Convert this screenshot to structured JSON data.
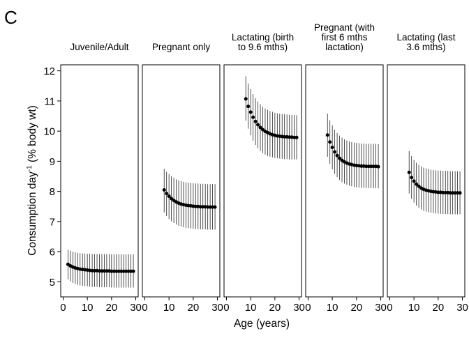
{
  "panel_letter": "C",
  "chart_data": {
    "type": "scatter",
    "error_bars": true,
    "xlabel": "Age (years)",
    "ylabel_main": "Consumption day",
    "ylabel_sup": "-1",
    "ylabel_tail": " (% body wt)",
    "xlim": [
      -1,
      31
    ],
    "ylim": [
      4.5,
      12.2
    ],
    "xticks": [
      0,
      10,
      20,
      30
    ],
    "xtick_labels": [
      "0",
      "10",
      "20",
      "30"
    ],
    "yticks": [
      5,
      6,
      7,
      8,
      9,
      10,
      11,
      12
    ],
    "ytick_labels": [
      "5",
      "6",
      "7",
      "8",
      "9",
      "10",
      "11",
      "12"
    ],
    "grid": false,
    "legend": "none",
    "panels": [
      {
        "title_lines": [
          "Juvenile/Adult"
        ],
        "x": [
          2,
          3,
          4,
          5,
          6,
          7,
          8,
          9,
          10,
          11,
          12,
          13,
          14,
          15,
          16,
          17,
          18,
          19,
          20,
          21,
          22,
          23,
          24,
          25,
          26,
          27,
          28,
          29
        ],
        "y": [
          5.58,
          5.53,
          5.49,
          5.46,
          5.44,
          5.42,
          5.41,
          5.4,
          5.39,
          5.38,
          5.37,
          5.37,
          5.37,
          5.36,
          5.36,
          5.36,
          5.36,
          5.36,
          5.35,
          5.35,
          5.35,
          5.35,
          5.35,
          5.35,
          5.35,
          5.35,
          5.35,
          5.35
        ],
        "lower": [
          5.08,
          5.01,
          4.96,
          4.93,
          4.9,
          4.88,
          4.87,
          4.86,
          4.85,
          4.84,
          4.83,
          4.83,
          4.83,
          4.82,
          4.82,
          4.82,
          4.82,
          4.82,
          4.81,
          4.81,
          4.81,
          4.81,
          4.81,
          4.81,
          4.81,
          4.81,
          4.81,
          4.81
        ],
        "upper": [
          6.06,
          6.03,
          6.0,
          5.98,
          5.96,
          5.95,
          5.94,
          5.94,
          5.93,
          5.93,
          5.92,
          5.92,
          5.92,
          5.92,
          5.92,
          5.92,
          5.92,
          5.92,
          5.91,
          5.91,
          5.91,
          5.91,
          5.91,
          5.91,
          5.91,
          5.91,
          5.91,
          5.91
        ]
      },
      {
        "title_lines": [
          "Pregnant only"
        ],
        "x": [
          8,
          9,
          10,
          11,
          12,
          13,
          14,
          15,
          16,
          17,
          18,
          19,
          20,
          21,
          22,
          23,
          24,
          25,
          26,
          27,
          28,
          29
        ],
        "y": [
          8.05,
          7.93,
          7.84,
          7.76,
          7.7,
          7.65,
          7.61,
          7.58,
          7.56,
          7.54,
          7.53,
          7.52,
          7.51,
          7.5,
          7.5,
          7.49,
          7.49,
          7.49,
          7.48,
          7.48,
          7.48,
          7.48
        ],
        "lower": [
          7.3,
          7.18,
          7.08,
          7.01,
          6.95,
          6.9,
          6.86,
          6.83,
          6.81,
          6.79,
          6.78,
          6.77,
          6.76,
          6.75,
          6.75,
          6.74,
          6.74,
          6.74,
          6.73,
          6.73,
          6.73,
          6.73
        ],
        "upper": [
          8.75,
          8.65,
          8.57,
          8.5,
          8.45,
          8.4,
          8.37,
          8.34,
          8.32,
          8.3,
          8.29,
          8.28,
          8.27,
          8.26,
          8.26,
          8.25,
          8.25,
          8.25,
          8.24,
          8.24,
          8.24,
          8.24
        ]
      },
      {
        "title_lines": [
          "Lactating (birth",
          "to 9.6 mths)"
        ],
        "x": [
          8,
          9,
          10,
          11,
          12,
          13,
          14,
          15,
          16,
          17,
          18,
          19,
          20,
          21,
          22,
          23,
          24,
          25,
          26,
          27,
          28,
          29
        ],
        "y": [
          11.07,
          10.82,
          10.63,
          10.46,
          10.32,
          10.21,
          10.12,
          10.05,
          9.99,
          9.95,
          9.91,
          9.88,
          9.86,
          9.84,
          9.83,
          9.82,
          9.81,
          9.81,
          9.8,
          9.8,
          9.79,
          9.79
        ],
        "lower": [
          10.35,
          10.08,
          9.86,
          9.68,
          9.54,
          9.43,
          9.34,
          9.27,
          9.22,
          9.18,
          9.15,
          9.13,
          9.11,
          9.1,
          9.09,
          9.08,
          9.07,
          9.07,
          9.06,
          9.06,
          9.06,
          9.06
        ],
        "upper": [
          11.82,
          11.58,
          11.39,
          11.23,
          11.09,
          10.98,
          10.89,
          10.81,
          10.75,
          10.71,
          10.67,
          10.64,
          10.61,
          10.59,
          10.58,
          10.57,
          10.56,
          10.55,
          10.54,
          10.54,
          10.53,
          10.53
        ]
      },
      {
        "title_lines": [
          "Pregnant (with",
          "first 6 mths",
          "lactation)"
        ],
        "x": [
          8,
          9,
          10,
          11,
          12,
          13,
          14,
          15,
          16,
          17,
          18,
          19,
          20,
          21,
          22,
          23,
          24,
          25,
          26,
          27,
          28,
          29
        ],
        "y": [
          9.87,
          9.64,
          9.46,
          9.31,
          9.19,
          9.1,
          9.03,
          8.98,
          8.94,
          8.91,
          8.89,
          8.87,
          8.86,
          8.85,
          8.84,
          8.84,
          8.83,
          8.83,
          8.83,
          8.83,
          8.83,
          8.82
        ],
        "lower": [
          9.15,
          8.92,
          8.73,
          8.58,
          8.47,
          8.38,
          8.31,
          8.26,
          8.22,
          8.19,
          8.17,
          8.15,
          8.14,
          8.13,
          8.12,
          8.12,
          8.11,
          8.11,
          8.11,
          8.11,
          8.11,
          8.1
        ],
        "upper": [
          10.58,
          10.36,
          10.19,
          10.05,
          9.94,
          9.85,
          9.78,
          9.73,
          9.69,
          9.66,
          9.64,
          9.62,
          9.61,
          9.6,
          9.59,
          9.59,
          9.58,
          9.58,
          9.58,
          9.58,
          9.58,
          9.57
        ]
      },
      {
        "title_lines": [
          "Lactating (last",
          "3.6 mths)"
        ],
        "x": [
          8,
          9,
          10,
          11,
          12,
          13,
          14,
          15,
          16,
          17,
          18,
          19,
          20,
          21,
          22,
          23,
          24,
          25,
          26,
          27,
          28,
          29
        ],
        "y": [
          8.63,
          8.46,
          8.34,
          8.24,
          8.17,
          8.11,
          8.07,
          8.04,
          8.02,
          8.0,
          7.99,
          7.98,
          7.97,
          7.97,
          7.96,
          7.96,
          7.96,
          7.95,
          7.95,
          7.95,
          7.95,
          7.95
        ],
        "lower": [
          7.93,
          7.76,
          7.63,
          7.53,
          7.46,
          7.4,
          7.36,
          7.33,
          7.31,
          7.29,
          7.28,
          7.27,
          7.26,
          7.26,
          7.25,
          7.25,
          7.25,
          7.24,
          7.24,
          7.24,
          7.24,
          7.24
        ],
        "upper": [
          9.34,
          9.17,
          9.04,
          8.95,
          8.88,
          8.83,
          8.79,
          8.76,
          8.74,
          8.72,
          8.71,
          8.7,
          8.69,
          8.69,
          8.68,
          8.68,
          8.68,
          8.67,
          8.67,
          8.67,
          8.67,
          8.67
        ]
      }
    ]
  }
}
